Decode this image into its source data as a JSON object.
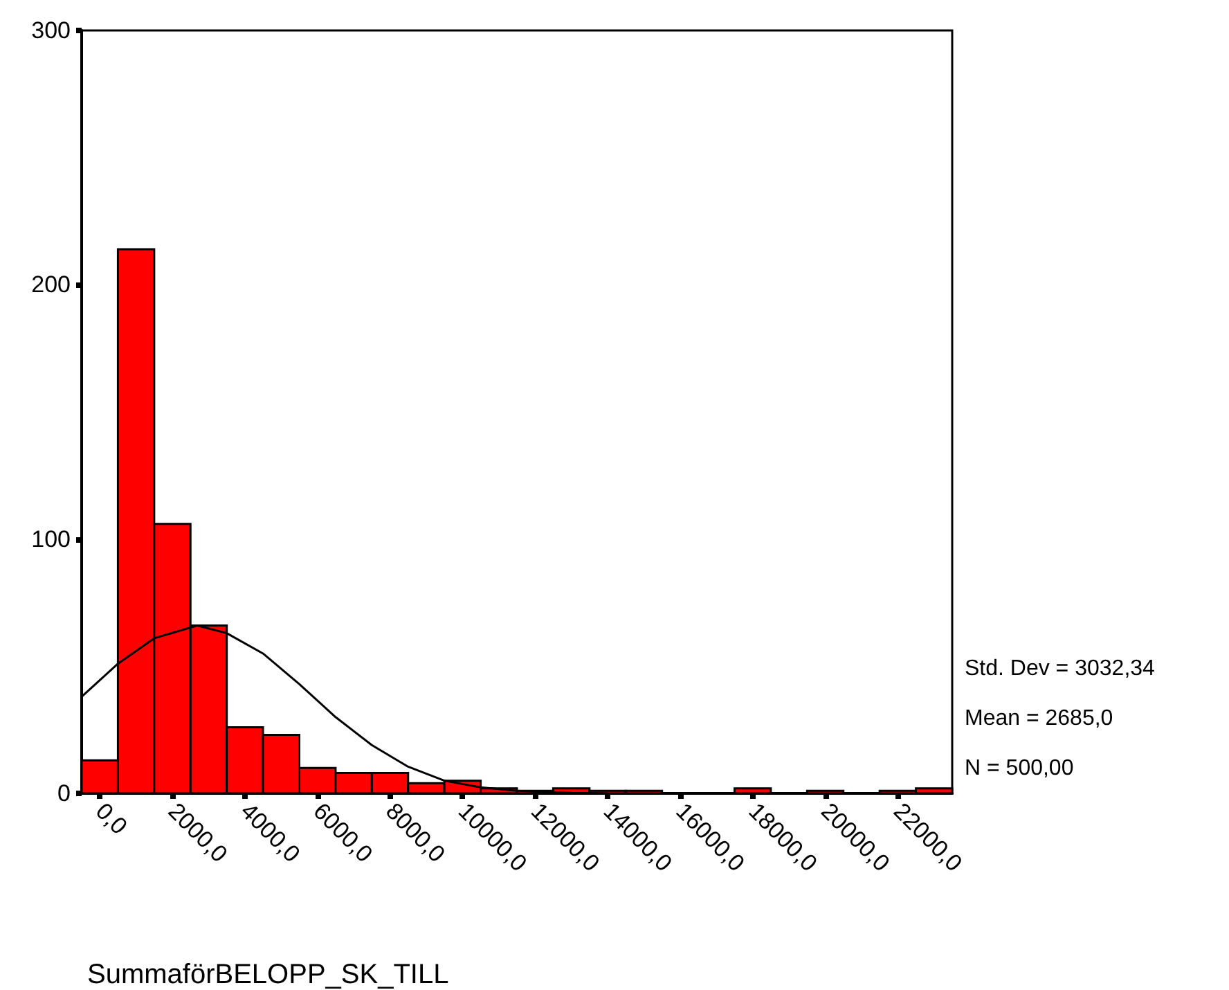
{
  "chart_data": {
    "type": "histogram",
    "xlabel": "SummaförBELOPP_SK_TILL",
    "bins": [
      -500,
      500,
      1500,
      2500,
      3500,
      4500,
      5500,
      6500,
      7500,
      8500,
      9500,
      10500,
      11500,
      12500,
      13500,
      14500,
      15500,
      16500,
      17500,
      18500,
      19500,
      20500,
      21500,
      22500,
      23500
    ],
    "series": [
      {
        "color": "#ff0000",
        "values": [
          13,
          214,
          106,
          66,
          26,
          23,
          10,
          8,
          8,
          4,
          5,
          2,
          1,
          2,
          1,
          1,
          0,
          0,
          2,
          0,
          1,
          0,
          1,
          2
        ]
      },
      {
        "type": "line",
        "color": "#000000",
        "x": [
          -500,
          500,
          1500,
          2685,
          3500,
          4500,
          5500,
          6500,
          7500,
          8500,
          9500,
          10500,
          11500,
          13000,
          14000
        ],
        "values": [
          38,
          51,
          61,
          66,
          63,
          55,
          43,
          30,
          19,
          10.5,
          5,
          2.4,
          1,
          0.2,
          0
        ]
      }
    ],
    "xlim": [
      -500,
      23500
    ],
    "xticks": [
      {
        "value": 0,
        "label": "0,0"
      },
      {
        "value": 2000,
        "label": "2000,0"
      },
      {
        "value": 4000,
        "label": "4000,0"
      },
      {
        "value": 6000,
        "label": "6000,0"
      },
      {
        "value": 8000,
        "label": "8000,0"
      },
      {
        "value": 10000,
        "label": "10000,0"
      },
      {
        "value": 12000,
        "label": "12000,0"
      },
      {
        "value": 14000,
        "label": "14000,0"
      },
      {
        "value": 16000,
        "label": "16000,0"
      },
      {
        "value": 18000,
        "label": "18000,0"
      },
      {
        "value": 20000,
        "label": "20000,0"
      },
      {
        "value": 22000,
        "label": "22000,0"
      }
    ],
    "ylim": [
      0,
      300
    ],
    "yticks": [
      0,
      100,
      200,
      300
    ],
    "grid": false,
    "annotations": [
      "Std. Dev = 3032,34",
      "Mean = 2685,0",
      "N = 500,00"
    ]
  }
}
